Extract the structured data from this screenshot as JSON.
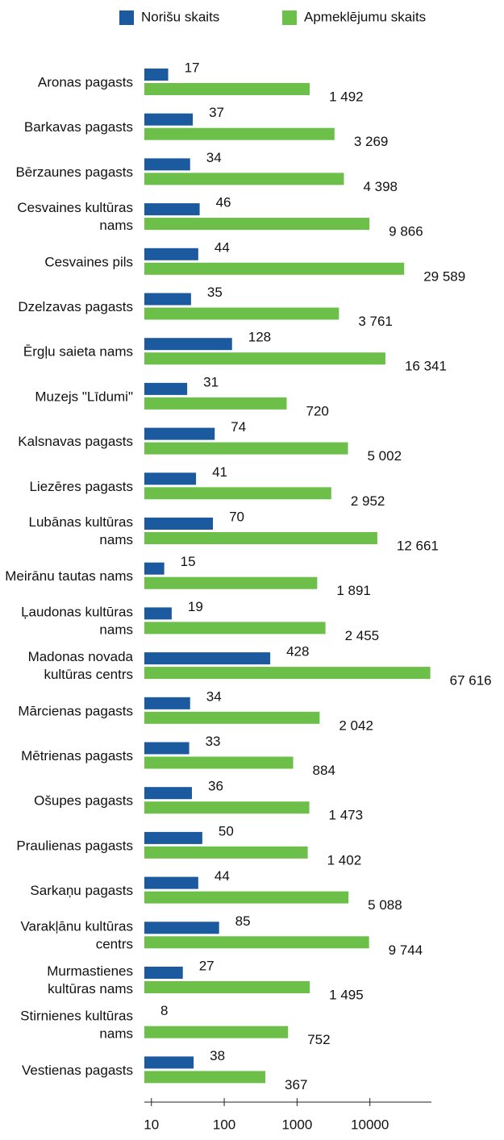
{
  "chart_data": {
    "type": "bar",
    "orientation": "horizontal",
    "categories": [
      "Aronas pagasts",
      "Barkavas pagasts",
      "Bērzaunes pagasts",
      "Cesvaines kultūras nams",
      "Cesvaines pils",
      "Dzelzavas pagasts",
      "Ērgļu saieta nams",
      "Muzejs \"Līdumi\"",
      "Kalsnavas pagasts",
      "Liezēres pagasts",
      "Lubānas kultūras nams",
      "Meirānu tautas nams",
      "Ļaudonas kultūras nams",
      "Madonas novada kultūras centrs",
      "Mārcienas pagasts",
      "Mētrienas pagasts",
      "Ošupes pagasts",
      "Praulienas pagasts",
      "Sarkaņu pagasts",
      "Varakļānu kultūras centrs",
      "Murmastienes kultūras nams",
      "Stirnienes kultūras nams",
      "Vestienas pagasts"
    ],
    "series": [
      {
        "name": "Norišu skaits",
        "color": "#1c5aa0",
        "values": [
          17,
          37,
          34,
          46,
          44,
          35,
          128,
          31,
          74,
          41,
          70,
          15,
          19,
          428,
          34,
          33,
          36,
          50,
          44,
          85,
          27,
          8,
          38
        ]
      },
      {
        "name": "Apmeklējumu skaits",
        "color": "#6cc04a",
        "values": [
          1492,
          3269,
          4398,
          9866,
          29589,
          3761,
          16341,
          720,
          5002,
          2952,
          12661,
          1891,
          2455,
          67616,
          2042,
          884,
          1473,
          1402,
          5088,
          9744,
          1495,
          752,
          367
        ],
        "value_labels": [
          "1 492",
          "3 269",
          "4 398",
          "9 866",
          "29 589",
          "3 761",
          "16 341",
          "720",
          "5 002",
          "2 952",
          "12 661",
          "1 891",
          "2 455",
          "67 616",
          "2 042",
          "884",
          "1 473",
          "1 402",
          "5 088",
          "9 744",
          "1 495",
          "752",
          "367"
        ]
      }
    ],
    "xscale": "log",
    "xlim": [
      8,
      70000
    ],
    "xticks": [
      10,
      100,
      1000,
      10000
    ],
    "legend": "top"
  }
}
